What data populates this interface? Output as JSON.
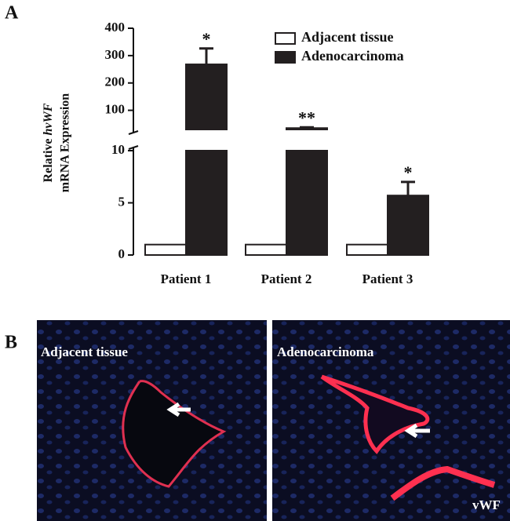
{
  "panel_a": "A",
  "panel_b": "B",
  "chart_data": {
    "type": "bar",
    "ylabel": {
      "line1_prefix": "Relative",
      "line1_italic": "hvWF",
      "line2": "mRNA Expression"
    },
    "categories": [
      "Patient 1",
      "Patient 2",
      "Patient 3"
    ],
    "series": [
      {
        "name": "Adjacent tissue",
        "color": "#ffffff",
        "values": [
          1,
          1,
          1
        ]
      },
      {
        "name": "Adenocarcinoma",
        "color": "#231f20",
        "values": [
          268,
          35,
          5.7
        ],
        "errors": [
          58,
          3,
          1.3
        ]
      }
    ],
    "significance": [
      "*",
      "**",
      "*"
    ],
    "ylim": [
      0,
      400
    ],
    "y_break": [
      10,
      30
    ],
    "yticks": [
      0,
      5,
      10,
      100,
      200,
      300,
      400
    ],
    "legend": "top-right"
  },
  "images": [
    {
      "label": "Adjacent tissue"
    },
    {
      "label": "Adenocarcinoma",
      "stain": "vWF"
    }
  ]
}
